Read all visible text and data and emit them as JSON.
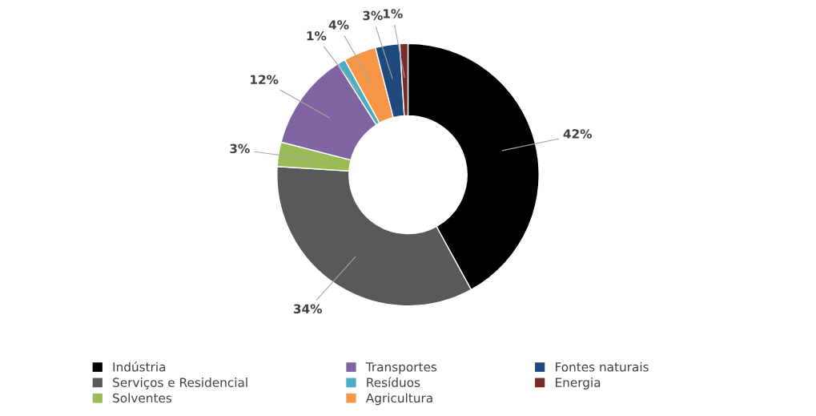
{
  "chart_data": {
    "type": "donut",
    "categories": [
      "Indústria",
      "Serviços e Residencial",
      "Solventes",
      "Transportes",
      "Resíduos",
      "Agricultura",
      "Fontes naturais",
      "Energia"
    ],
    "values": [
      42,
      34,
      3,
      12,
      1,
      4,
      3,
      1
    ],
    "colors": [
      "#000000",
      "#595959",
      "#9bbb59",
      "#8064a2",
      "#4bacc6",
      "#f79646",
      "#1f497d",
      "#772c2a"
    ],
    "value_labels": [
      "42%",
      "34%",
      "3%",
      "12%",
      "1%",
      "4%",
      "3%",
      "1%"
    ],
    "legend": "bottom"
  }
}
